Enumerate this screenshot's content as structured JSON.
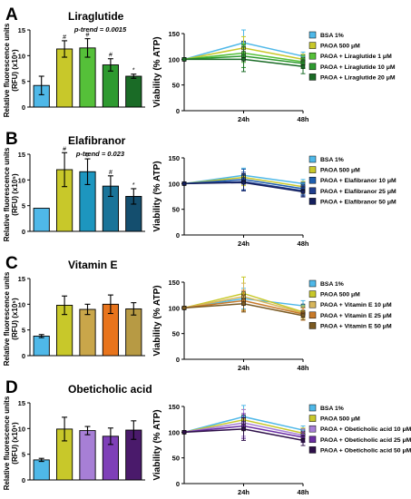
{
  "figure": {
    "panels": [
      {
        "letter": "A",
        "title": "Liraglutide",
        "ptrend": "p-trend = 0.0015"
      },
      {
        "letter": "B",
        "title": "Elafibranor",
        "ptrend": "p-trend = 0.023"
      },
      {
        "letter": "C",
        "title": "Vitamin E",
        "ptrend": ""
      },
      {
        "letter": "D",
        "title": "Obeticholic acid",
        "ptrend": ""
      }
    ],
    "bar_ylabel_line1": "Relative fluorescence units",
    "bar_ylabel_line2": "(RFU) (x10⁵)",
    "line_ylabel": "Viability (% ATP)"
  },
  "chart_data": [
    {
      "type": "bar",
      "panel": "A",
      "categories": [
        "BSA 1%",
        "PAOA 500 μM",
        "PAOA + Liraglutide 1 μM",
        "PAOA + Liraglutide 10 μM",
        "PAOA + Liraglutide 20 μM"
      ],
      "values": [
        4.2,
        11.3,
        11.5,
        8.2,
        6.0
      ],
      "errors": [
        1.8,
        1.6,
        1.8,
        1.2,
        0.4
      ],
      "annotations": [
        "",
        "#",
        "#",
        "#",
        "*"
      ],
      "colors": [
        "#4fb8e8",
        "#c8c82a",
        "#55c039",
        "#2e9a30",
        "#1a6b26"
      ],
      "title": "Liraglutide",
      "ylim": [
        0,
        15
      ],
      "yticks": [
        "0",
        "5",
        "10",
        "15"
      ]
    },
    {
      "type": "line",
      "panel": "A",
      "x": [
        "",
        "24h",
        "48h"
      ],
      "ylim": [
        0,
        150
      ],
      "yticks": [
        "0",
        "50",
        "100",
        "150"
      ],
      "series": [
        {
          "name": "BSA 1%",
          "values": [
            100,
            132,
            106
          ],
          "errors": [
            0,
            25,
            8
          ],
          "color": "#4fb8e8"
        },
        {
          "name": "PAOA 500 μM",
          "values": [
            100,
            122,
            100
          ],
          "errors": [
            0,
            22,
            10
          ],
          "color": "#c8c82a"
        },
        {
          "name": "PAOA + Liraglutide 1 μM",
          "values": [
            100,
            112,
            95
          ],
          "errors": [
            0,
            18,
            12
          ],
          "color": "#55c039"
        },
        {
          "name": "PAOA + Liraglutide 10 μM",
          "values": [
            100,
            106,
            92
          ],
          "errors": [
            0,
            22,
            10
          ],
          "color": "#2e9a30"
        },
        {
          "name": "PAOA + Liraglutide 20 μM",
          "values": [
            100,
            100,
            86
          ],
          "errors": [
            0,
            24,
            14
          ],
          "color": "#1a6b26"
        }
      ]
    },
    {
      "type": "bar",
      "panel": "B",
      "categories": [
        "BSA 1%",
        "PAOA 500 μM",
        "PAOA + Elafibranor 10 μM",
        "PAOA + Elafibranor 25 μM",
        "PAOA + Elafibranor 50 μM"
      ],
      "values": [
        4.5,
        12.0,
        11.6,
        8.8,
        6.8
      ],
      "errors": [
        0,
        3.3,
        2.5,
        2.0,
        1.5
      ],
      "annotations": [
        "",
        "#",
        "#",
        "#",
        "*"
      ],
      "colors": [
        "#4fb8e8",
        "#c8c82a",
        "#1d96bf",
        "#1a7499",
        "#144e6e"
      ],
      "title": "Elafibranor",
      "ylim": [
        0,
        15
      ],
      "yticks": [
        "0",
        "5",
        "10",
        "15"
      ]
    },
    {
      "type": "line",
      "panel": "B",
      "x": [
        "",
        "24h",
        "48h"
      ],
      "ylim": [
        0,
        150
      ],
      "yticks": [
        "0",
        "50",
        "100",
        "150"
      ],
      "series": [
        {
          "name": "BSA 1%",
          "values": [
            100,
            116,
            100
          ],
          "errors": [
            0,
            14,
            8
          ],
          "color": "#4fb8e8"
        },
        {
          "name": "PAOA 500 μM",
          "values": [
            100,
            112,
            94
          ],
          "errors": [
            0,
            16,
            10
          ],
          "color": "#c8c82a"
        },
        {
          "name": "PAOA + Elafibranor 10 μM",
          "values": [
            100,
            108,
            90
          ],
          "errors": [
            0,
            20,
            12
          ],
          "color": "#1f5fb0"
        },
        {
          "name": "PAOA + Elafibranor 25 μM",
          "values": [
            100,
            104,
            86
          ],
          "errors": [
            0,
            18,
            10
          ],
          "color": "#213f8f"
        },
        {
          "name": "PAOA + Elafibranor 50 μM",
          "values": [
            100,
            102,
            84
          ],
          "errors": [
            0,
            16,
            10
          ],
          "color": "#15205e"
        }
      ]
    },
    {
      "type": "bar",
      "panel": "C",
      "categories": [
        "BSA 1%",
        "PAOA 500 μM",
        "PAOA + Vitamin E 10 μM",
        "PAOA + Vitamin E 25 μM",
        "PAOA + Vitamin E 50 μM"
      ],
      "values": [
        3.8,
        9.8,
        9.0,
        10.0,
        9.1
      ],
      "errors": [
        0.3,
        1.8,
        1.0,
        1.8,
        1.2
      ],
      "annotations": [
        "",
        "",
        "",
        "",
        ""
      ],
      "colors": [
        "#4fb8e8",
        "#c8c82a",
        "#c9a64a",
        "#e8741c",
        "#b79a44"
      ],
      "title": "Vitamin E",
      "ylim": [
        0,
        15
      ],
      "yticks": [
        "0",
        "5",
        "10",
        "15"
      ]
    },
    {
      "type": "line",
      "panel": "C",
      "x": [
        "",
        "24h",
        "48h"
      ],
      "ylim": [
        0,
        150
      ],
      "yticks": [
        "0",
        "50",
        "100",
        "150"
      ],
      "series": [
        {
          "name": "BSA 1%",
          "values": [
            100,
            118,
            104
          ],
          "errors": [
            0,
            20,
            10
          ],
          "color": "#4fb8e8"
        },
        {
          "name": "PAOA 500 μM",
          "values": [
            100,
            128,
            92
          ],
          "errors": [
            0,
            32,
            12
          ],
          "color": "#c8c82a"
        },
        {
          "name": "PAOA + Vitamin E 10 μM",
          "values": [
            100,
            122,
            90
          ],
          "errors": [
            0,
            26,
            10
          ],
          "color": "#d7b65c"
        },
        {
          "name": "PAOA + Vitamin E 25 μM",
          "values": [
            100,
            114,
            88
          ],
          "errors": [
            0,
            20,
            12
          ],
          "color": "#c87a2a"
        },
        {
          "name": "PAOA + Vitamin E 50 μM",
          "values": [
            100,
            108,
            85
          ],
          "errors": [
            0,
            16,
            8
          ],
          "color": "#7a5a22"
        }
      ]
    },
    {
      "type": "bar",
      "panel": "D",
      "categories": [
        "BSA 1%",
        "PAOA 500 μM",
        "PAOA + Obeticholic acid 10 μM",
        "PAOA + Obeticholic acid 25 μM",
        "PAOA + Obeticholic acid 50 μM"
      ],
      "values": [
        3.9,
        9.9,
        9.6,
        8.5,
        9.7
      ],
      "errors": [
        0.3,
        2.3,
        0.8,
        1.6,
        1.8
      ],
      "annotations": [
        "",
        "",
        "",
        "",
        ""
      ],
      "colors": [
        "#4fb8e8",
        "#c8c82a",
        "#a77fd6",
        "#7e3fb8",
        "#4a1a6b"
      ],
      "title": "Obeticholic acid",
      "ylim": [
        0,
        15
      ],
      "yticks": [
        "0",
        "5",
        "10",
        "15"
      ]
    },
    {
      "type": "line",
      "panel": "D",
      "x": [
        "",
        "24h",
        "48h"
      ],
      "ylim": [
        0,
        150
      ],
      "yticks": [
        "0",
        "50",
        "100",
        "150"
      ],
      "series": [
        {
          "name": "BSA 1%",
          "values": [
            100,
            130,
            104
          ],
          "errors": [
            0,
            22,
            8
          ],
          "color": "#4fb8e8"
        },
        {
          "name": "PAOA 500 μM",
          "values": [
            100,
            124,
            98
          ],
          "errors": [
            0,
            20,
            10
          ],
          "color": "#c8c82a"
        },
        {
          "name": "PAOA + Obeticholic acid 10 μM",
          "values": [
            100,
            118,
            94
          ],
          "errors": [
            0,
            26,
            12
          ],
          "color": "#a77fd6"
        },
        {
          "name": "PAOA + Obeticholic acid 25 μM",
          "values": [
            100,
            112,
            90
          ],
          "errors": [
            0,
            24,
            10
          ],
          "color": "#6b2fa3"
        },
        {
          "name": "PAOA + Obeticholic acid 50 μM",
          "values": [
            100,
            106,
            84
          ],
          "errors": [
            0,
            22,
            10
          ],
          "color": "#2e1049"
        }
      ]
    }
  ]
}
